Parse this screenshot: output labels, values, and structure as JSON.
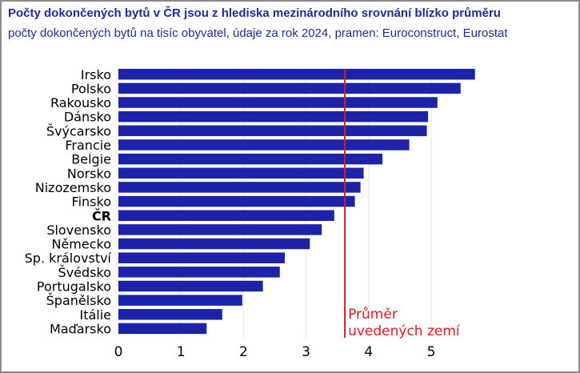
{
  "header": {
    "title": "Počty dokončených bytů v ČR jsou z hlediska mezinárodního srovnání blízko průměru",
    "subtitle": "počty dokončených bytů na tisíc obyvatel, údaje za rok 2024, pramen: Euroconstruct, Eurostat"
  },
  "chart_data": {
    "type": "bar",
    "orientation": "horizontal",
    "categories": [
      "Irsko",
      "Polsko",
      "Rakousko",
      "Dánsko",
      "Švýcarsko",
      "Francie",
      "Belgie",
      "Norsko",
      "Nizozemsko",
      "Finsko",
      "ČR",
      "Slovensko",
      "Německo",
      "Sp. království",
      "Švédsko",
      "Portugalsko",
      "Španělsko",
      "Itálie",
      "Maďarsko"
    ],
    "highlight_category": "ČR",
    "values": [
      5.7,
      5.47,
      5.1,
      4.95,
      4.93,
      4.65,
      4.22,
      3.92,
      3.87,
      3.78,
      3.45,
      3.25,
      3.06,
      2.66,
      2.58,
      2.31,
      1.98,
      1.66,
      1.41
    ],
    "xlim": [
      0,
      5.85
    ],
    "xticks": [
      0,
      1,
      2,
      3,
      4,
      5
    ],
    "grid": "vertical",
    "bar_color": "#1c23a8",
    "reference_line": {
      "value": 3.62,
      "color": "#e0191e",
      "label_lines": [
        "Průměr",
        "uvedených zemí"
      ]
    }
  }
}
